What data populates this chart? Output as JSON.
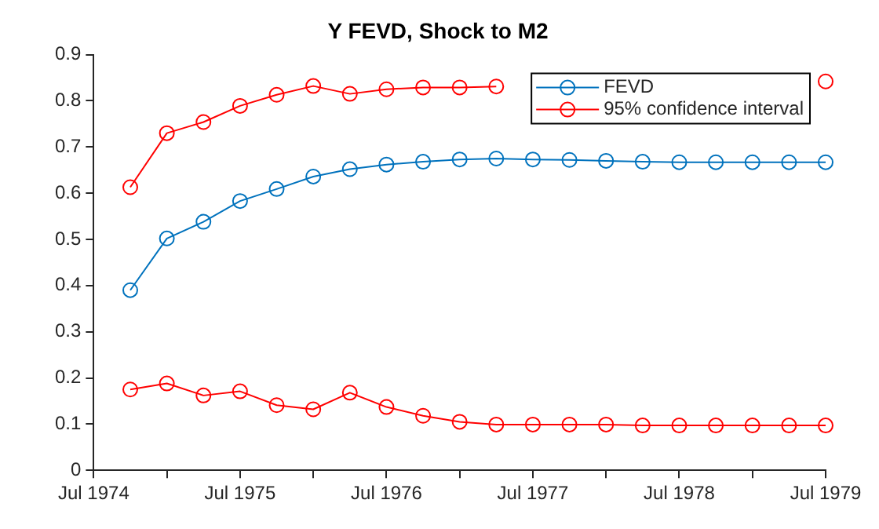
{
  "chart_data": {
    "type": "line",
    "title": "Y FEVD, Shock to M2",
    "x": [
      "1974-10",
      "1975-01",
      "1975-04",
      "1975-07",
      "1975-10",
      "1976-01",
      "1976-04",
      "1976-07",
      "1976-10",
      "1977-01",
      "1977-04",
      "1977-07",
      "1977-10",
      "1978-01",
      "1978-04",
      "1978-07",
      "1978-10",
      "1979-01",
      "1979-04",
      "1979-07"
    ],
    "series": [
      {
        "name": "FEVD",
        "color": "#0072bd",
        "values": [
          0.39,
          0.502,
          0.538,
          0.583,
          0.609,
          0.636,
          0.652,
          0.662,
          0.668,
          0.673,
          0.675,
          0.673,
          0.672,
          0.67,
          0.668,
          0.667,
          0.667,
          0.667,
          0.667,
          0.667
        ]
      },
      {
        "name": "95% confidence interval",
        "color": "#ff0000",
        "values": [
          0.613,
          0.73,
          0.754,
          0.789,
          0.813,
          0.832,
          0.815,
          0.825,
          0.829,
          0.829,
          0.831,
          null,
          null,
          null,
          null,
          null,
          null,
          null,
          null,
          0.842
        ]
      },
      {
        "color": "#ff0000",
        "values": [
          0.175,
          0.188,
          0.162,
          0.171,
          0.141,
          0.132,
          0.168,
          0.137,
          0.118,
          0.105,
          0.099,
          0.099,
          0.099,
          0.099,
          0.097,
          0.097,
          0.097,
          0.097,
          0.097,
          0.097
        ]
      }
    ],
    "xlim": [
      "1974-07",
      "1979-07"
    ],
    "xticks": [
      {
        "value": "1974-07",
        "label": "Jul 1974"
      },
      {
        "value": "1975-01",
        "label": null
      },
      {
        "value": "1975-07",
        "label": "Jul 1975"
      },
      {
        "value": "1976-01",
        "label": null
      },
      {
        "value": "1976-07",
        "label": "Jul 1976"
      },
      {
        "value": "1977-01",
        "label": null
      },
      {
        "value": "1977-07",
        "label": "Jul 1977"
      },
      {
        "value": "1978-01",
        "label": null
      },
      {
        "value": "1978-07",
        "label": "Jul 1978"
      },
      {
        "value": "1979-01",
        "label": null
      },
      {
        "value": "1979-07",
        "label": "Jul 1979"
      }
    ],
    "ylim": [
      0,
      0.9
    ],
    "yticks": [
      0,
      0.1,
      0.2,
      0.3,
      0.4,
      0.5,
      0.6,
      0.7,
      0.8,
      0.9
    ],
    "grid": false,
    "legend": "top right",
    "marker": "circle",
    "line_style": "solid"
  }
}
